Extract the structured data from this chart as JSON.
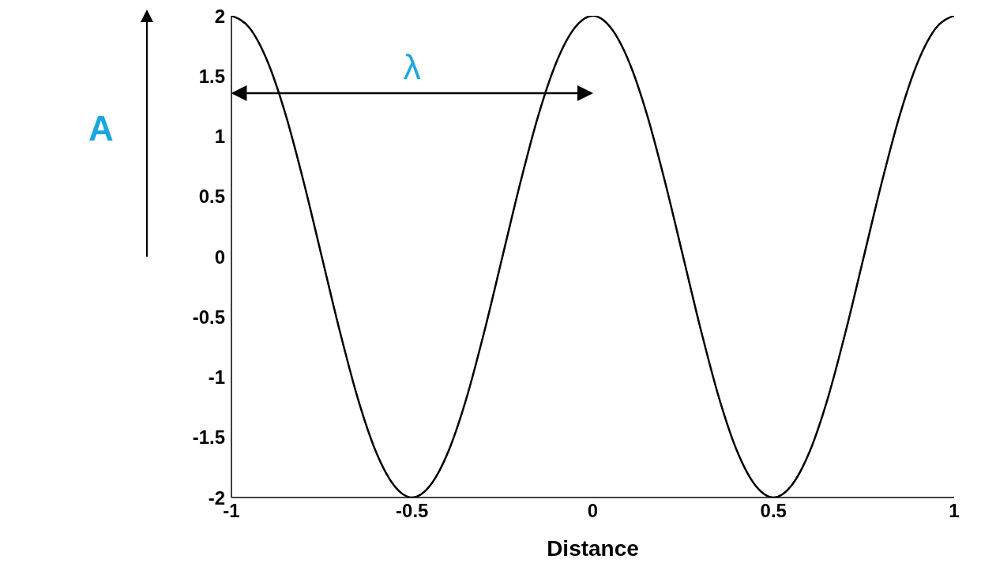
{
  "chart_data": {
    "type": "line",
    "xlabel": "Distance",
    "ylabel": "A",
    "x": [
      -1,
      -0.95,
      -0.9,
      -0.85,
      -0.8,
      -0.75,
      -0.7,
      -0.65,
      -0.6,
      -0.55,
      -0.5,
      -0.45,
      -0.4,
      -0.35,
      -0.3,
      -0.25,
      -0.2,
      -0.15,
      -0.1,
      -0.05,
      0,
      0.05,
      0.1,
      0.15,
      0.2,
      0.25,
      0.3,
      0.35,
      0.4,
      0.45,
      0.5,
      0.55,
      0.6,
      0.65,
      0.7,
      0.75,
      0.8,
      0.85,
      0.9,
      0.95,
      1
    ],
    "series": [
      {
        "color": "#000000",
        "values": [
          2,
          1.9,
          1.62,
          1.18,
          0.62,
          0,
          -0.62,
          -1.18,
          -1.62,
          -1.9,
          -2,
          -1.9,
          -1.62,
          -1.18,
          -0.62,
          0,
          0.62,
          1.18,
          1.62,
          1.9,
          2,
          1.9,
          1.62,
          1.18,
          0.62,
          0,
          -0.62,
          -1.18,
          -1.62,
          -1.9,
          -2,
          -1.9,
          -1.62,
          -1.18,
          -0.62,
          0,
          0.62,
          1.18,
          1.62,
          1.9,
          2
        ]
      }
    ],
    "xlim": [
      -1,
      1
    ],
    "xticks": [
      -1,
      -0.5,
      0,
      0.5,
      1
    ],
    "ylim": [
      -2,
      2
    ],
    "yticks": [
      -2,
      -1.5,
      -1,
      -0.5,
      0,
      0.5,
      1,
      1.5,
      2
    ],
    "marker": "none",
    "line_style": "solid",
    "annotations": [
      "λ"
    ]
  }
}
